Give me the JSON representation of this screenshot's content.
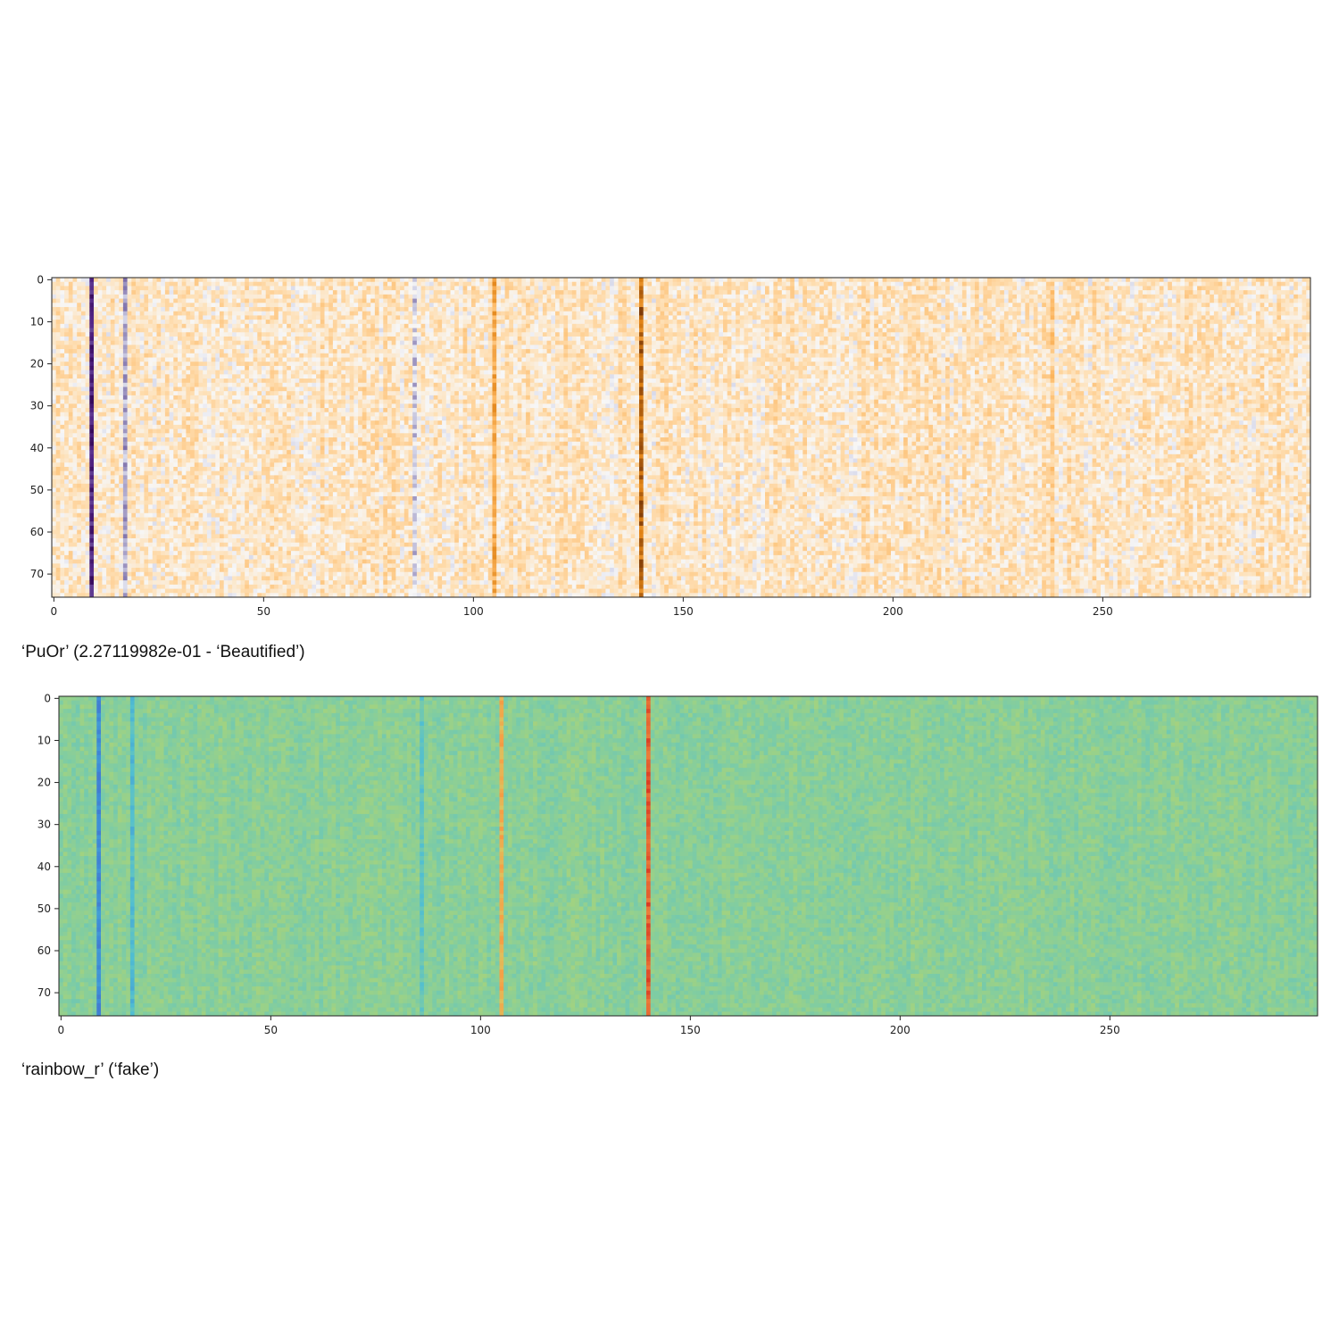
{
  "figure": {
    "captions": [
      "‘PuOr’ (2.27119982e-01 - ‘Beautified’)",
      "‘rainbow_r’ (‘fake’)"
    ]
  },
  "chart_data": [
    {
      "type": "heatmap",
      "colormap": "PuOr",
      "title": "",
      "xlabel": "",
      "ylabel": "",
      "rows": 76,
      "columns": 300,
      "xlim": [
        0,
        300
      ],
      "ylim": [
        76,
        0
      ],
      "xticks": [
        0,
        50,
        100,
        150,
        200,
        250
      ],
      "yticks": [
        0,
        10,
        20,
        30,
        40,
        50,
        60,
        70
      ],
      "background_value": 0.15,
      "noise_amplitude": 0.18,
      "column_features": [
        {
          "column": 9,
          "value": -0.75
        },
        {
          "column": 17,
          "value": -0.25
        },
        {
          "column": 86,
          "value": -0.15
        },
        {
          "column": 105,
          "value": 0.55
        },
        {
          "column": 140,
          "value": 0.85
        },
        {
          "column": 238,
          "value": 0.35
        }
      ]
    },
    {
      "type": "heatmap",
      "colormap": "rainbow_r",
      "title": "",
      "xlabel": "",
      "ylabel": "",
      "rows": 76,
      "columns": 300,
      "xlim": [
        0,
        300
      ],
      "ylim": [
        76,
        0
      ],
      "xticks": [
        0,
        50,
        100,
        150,
        200,
        250
      ],
      "yticks": [
        0,
        10,
        20,
        30,
        40,
        50,
        60,
        70
      ],
      "background_value": 0.52,
      "noise_amplitude": 0.05,
      "column_features": [
        {
          "column": 9,
          "value": 0.2
        },
        {
          "column": 17,
          "value": 0.35
        },
        {
          "column": 86,
          "value": 0.4
        },
        {
          "column": 105,
          "value": 0.75
        },
        {
          "column": 140,
          "value": 0.92
        }
      ]
    }
  ]
}
